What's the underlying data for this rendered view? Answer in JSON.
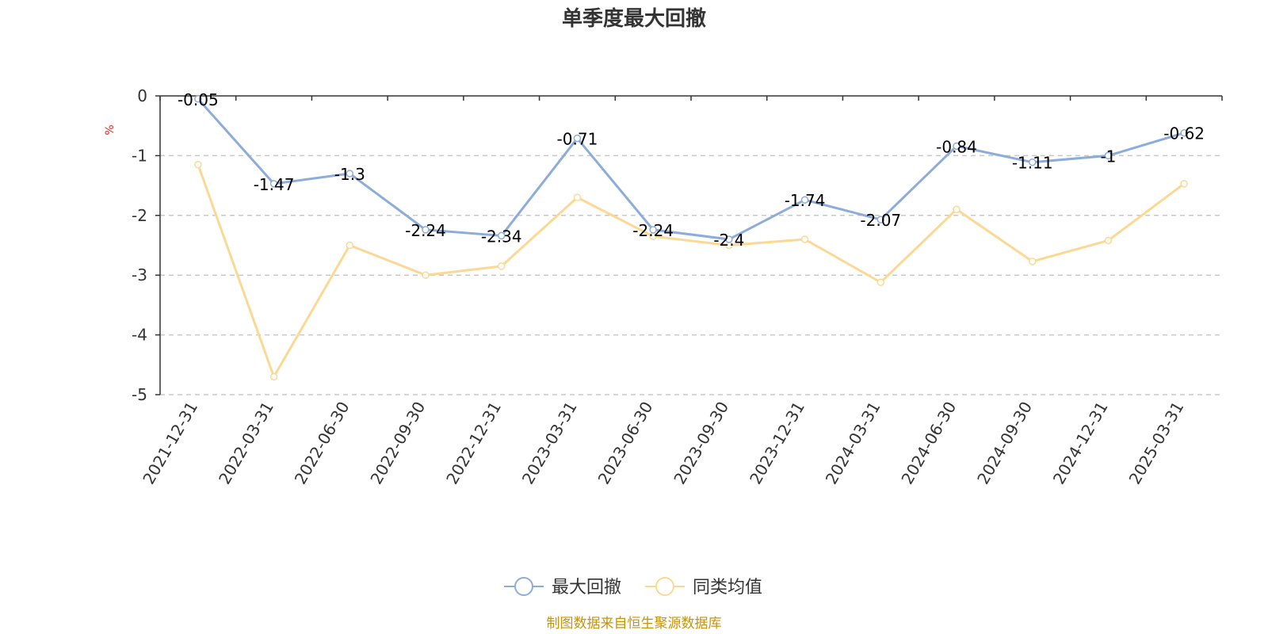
{
  "chart_data": {
    "type": "line",
    "title": "单季度最大回撤",
    "ylabel": "%",
    "xlabel": "",
    "ylim": [
      -5,
      0
    ],
    "yticks": [
      0,
      -1,
      -2,
      -3,
      -4,
      -5
    ],
    "grid": true,
    "legend_position": "bottom",
    "categories": [
      "2021-12-31",
      "2022-03-31",
      "2022-06-30",
      "2022-09-30",
      "2022-12-31",
      "2023-03-31",
      "2023-06-30",
      "2023-09-30",
      "2023-12-31",
      "2024-03-31",
      "2024-06-30",
      "2024-09-30",
      "2024-12-31",
      "2025-03-31"
    ],
    "series": [
      {
        "name": "最大回撤",
        "color": "#8eacd9",
        "show_labels": true,
        "values": [
          -0.05,
          -1.47,
          -1.3,
          -2.24,
          -2.34,
          -0.71,
          -2.24,
          -2.4,
          -1.74,
          -2.07,
          -0.84,
          -1.11,
          -1,
          -0.62
        ]
      },
      {
        "name": "同类均值",
        "color": "#fbd995",
        "show_labels": false,
        "values": [
          -1.15,
          -4.7,
          -2.5,
          -3.0,
          -2.85,
          -1.7,
          -2.35,
          -2.5,
          -2.4,
          -3.12,
          -1.9,
          -2.77,
          -2.42,
          -1.47
        ]
      }
    ],
    "source": "制图数据来自恒生聚源数据库"
  }
}
